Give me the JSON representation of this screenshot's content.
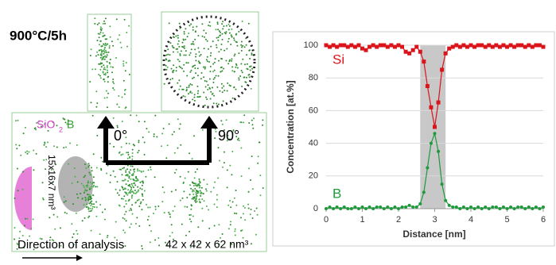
{
  "left_panel": {
    "condition": "900°C/5h",
    "legend": {
      "oxide": "SiO",
      "subscript": "2",
      "dopant": "B"
    },
    "angles": [
      "0°",
      "90°"
    ],
    "size_label": "15x16x7 nm³",
    "direction": "Direction of analysis",
    "volume": "42 x 42 x 62 nm³"
  },
  "chart_data": {
    "type": "line",
    "xlabel": "Distance [nm]",
    "ylabel": "Concentration [at.%]",
    "x": [
      0,
      0.1,
      0.2,
      0.3,
      0.4,
      0.5,
      0.6,
      0.7,
      0.8,
      0.9,
      1,
      1.1,
      1.2,
      1.3,
      1.4,
      1.5,
      1.6,
      1.7,
      1.8,
      1.9,
      2,
      2.1,
      2.2,
      2.3,
      2.4,
      2.5,
      2.6,
      2.7,
      2.8,
      2.9,
      3,
      3.1,
      3.2,
      3.3,
      3.4,
      3.5,
      3.6,
      3.7,
      3.8,
      3.9,
      4,
      4.1,
      4.2,
      4.3,
      4.4,
      4.5,
      4.6,
      4.7,
      4.8,
      4.9,
      5,
      5.1,
      5.2,
      5.3,
      5.4,
      5.5,
      5.6,
      5.7,
      5.8,
      5.9,
      6
    ],
    "series": [
      {
        "name": "Si",
        "color": "#d9141b",
        "values": [
          100,
          99,
          100,
          99,
          100,
          100,
          99,
          100,
          99,
          100,
          98,
          97,
          99,
          100,
          99,
          100,
          100,
          99,
          100,
          99,
          100,
          99,
          96,
          95,
          97,
          99,
          96,
          90,
          75,
          62,
          50,
          65,
          85,
          95,
          98,
          99,
          100,
          99,
          100,
          99,
          100,
          99,
          100,
          100,
          99,
          100,
          99,
          100,
          99,
          100,
          99,
          100,
          99,
          100,
          100,
          99,
          100,
          99,
          100,
          100,
          99
        ]
      },
      {
        "name": "B",
        "color": "#1e9a3c",
        "values": [
          0,
          1,
          0,
          1,
          0,
          1,
          0,
          0,
          1,
          0,
          1,
          0,
          1,
          0,
          1,
          1,
          0,
          1,
          0,
          1,
          0,
          1,
          1,
          2,
          1,
          1,
          3,
          10,
          25,
          40,
          46,
          35,
          15,
          5,
          2,
          1,
          1,
          0,
          1,
          0,
          1,
          0,
          1,
          0,
          1,
          0,
          1,
          1,
          0,
          1,
          0,
          1,
          0,
          1,
          1,
          0,
          1,
          0,
          1,
          0,
          1
        ]
      }
    ],
    "highlight": [
      2.6,
      3.3
    ],
    "xlim": [
      0,
      6
    ],
    "xticks": [
      0,
      1,
      2,
      3,
      4,
      5,
      6
    ],
    "ylim": [
      0,
      100
    ],
    "yticks": [
      0,
      20,
      40,
      60,
      80,
      100
    ],
    "grid": true
  }
}
